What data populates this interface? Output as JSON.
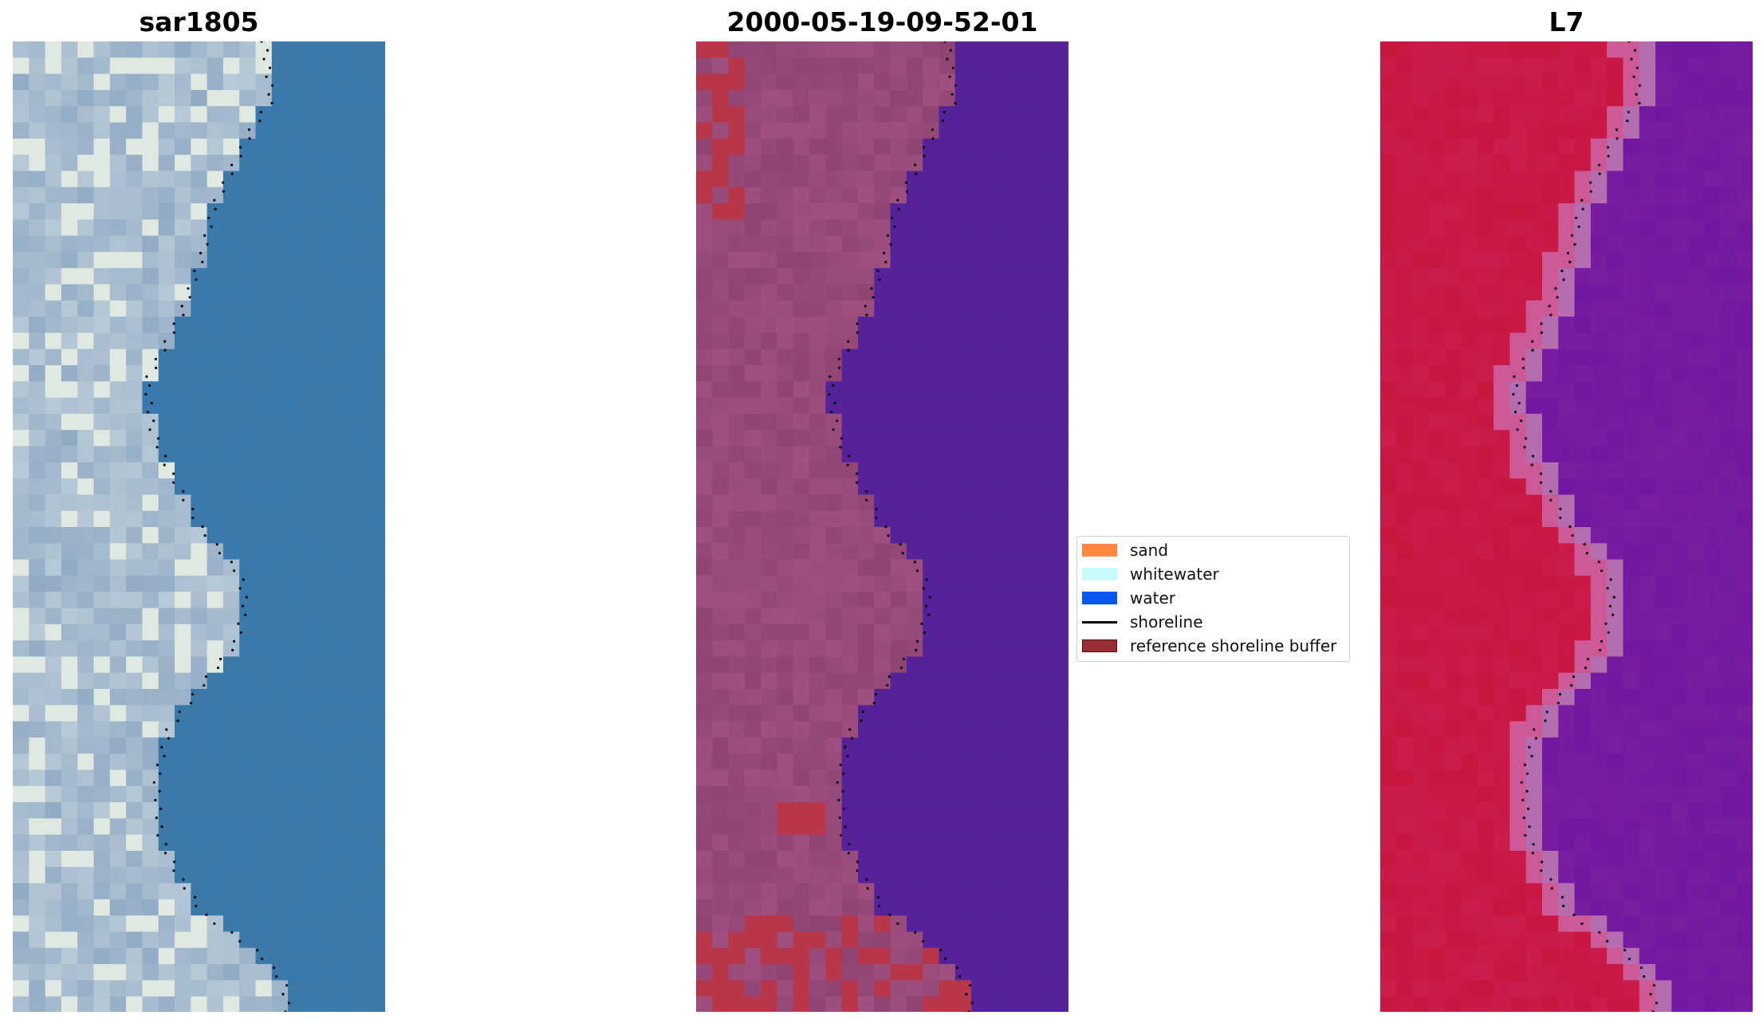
{
  "panels": [
    {
      "title": "sar1805",
      "style": "rgb"
    },
    {
      "title": "2000-05-19-09-52-01",
      "style": "classified"
    },
    {
      "title": "L7",
      "style": "index"
    }
  ],
  "legend": {
    "items": [
      {
        "label": "sand",
        "color": "#ff8a3d",
        "kind": "patch"
      },
      {
        "label": "whitewater",
        "color": "#c8fafa",
        "kind": "patch"
      },
      {
        "label": "water",
        "color": "#0a55f0",
        "kind": "patch"
      },
      {
        "label": "shoreline",
        "color": "#000000",
        "kind": "line"
      },
      {
        "label": "reference shoreline buffer",
        "color": "#9b2d35",
        "kind": "patch"
      }
    ]
  },
  "colors": {
    "classified_land": "#a0507f",
    "classified_water": "#55229a",
    "classified_buffer": "#b8364a",
    "index_land": "#c8163f",
    "index_water": "#7a1ea0",
    "rgb_water": "#3b79a8",
    "rgb_land": "#b8c9d6"
  }
}
